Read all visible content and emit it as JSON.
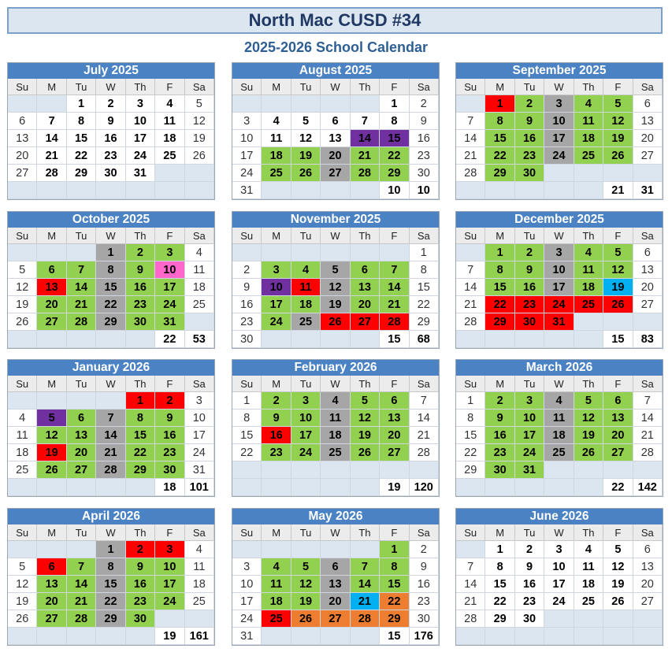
{
  "title": "North Mac CUSD #34",
  "subtitle": "2025-2026 School Calendar",
  "weekdays": [
    "Su",
    "M",
    "Tu",
    "W",
    "Th",
    "F",
    "Sa"
  ],
  "colors": {
    "student_day": "#92d050",
    "no_student": "#a6a6a6",
    "holiday": "#ff0000",
    "purple": "#7030a0",
    "pink": "#ff66cc",
    "blue": "#00b0f0",
    "orange": "#ed7d31",
    "empty": "#dce6f1"
  },
  "months": [
    {
      "name": "July 2025",
      "weeks": [
        [
          null,
          null,
          "1n",
          "2n",
          "3n",
          "4n",
          "5w"
        ],
        [
          "6w",
          "7n",
          "8n",
          "9n",
          "10n",
          "11n",
          "12w"
        ],
        [
          "13w",
          "14n",
          "15n",
          "16n",
          "17n",
          "18n",
          "19w"
        ],
        [
          "20w",
          "21n",
          "22n",
          "23n",
          "24n",
          "25n",
          "26w"
        ],
        [
          "27w",
          "28n",
          "29n",
          "30n",
          "31n",
          null,
          null
        ],
        [
          null,
          null,
          null,
          null,
          null,
          null,
          null
        ]
      ]
    },
    {
      "name": "August 2025",
      "weeks": [
        [
          null,
          null,
          null,
          null,
          null,
          "1n",
          "2w"
        ],
        [
          "3w",
          "4n",
          "5n",
          "6n",
          "7n",
          "8n",
          "9w"
        ],
        [
          "10w",
          "11n",
          "12n",
          "13n",
          "14p",
          "15p",
          "16w"
        ],
        [
          "17w",
          "18g",
          "19g",
          "20x",
          "21g",
          "22g",
          "23w"
        ],
        [
          "24w",
          "25g",
          "26g",
          "27x",
          "28g",
          "29g",
          "30w"
        ],
        [
          "31w",
          null,
          null,
          null,
          null,
          "10c",
          "10c"
        ]
      ]
    },
    {
      "name": "September 2025",
      "weeks": [
        [
          null,
          "1r",
          "2g",
          "3x",
          "4g",
          "5g",
          "6w"
        ],
        [
          "7w",
          "8g",
          "9g",
          "10x",
          "11g",
          "12g",
          "13w"
        ],
        [
          "14w",
          "15g",
          "16g",
          "17x",
          "18g",
          "19g",
          "20w"
        ],
        [
          "21w",
          "22g",
          "23g",
          "24x",
          "25g",
          "26g",
          "27w"
        ],
        [
          "28w",
          "29g",
          "30g",
          null,
          null,
          null,
          null
        ],
        [
          null,
          null,
          null,
          null,
          null,
          "21c",
          "31c"
        ]
      ]
    },
    {
      "name": "October 2025",
      "weeks": [
        [
          null,
          null,
          null,
          "1x",
          "2g",
          "3g",
          "4w"
        ],
        [
          "5w",
          "6g",
          "7g",
          "8x",
          "9g",
          "10k",
          "11w"
        ],
        [
          "12w",
          "13r",
          "14g",
          "15x",
          "16g",
          "17g",
          "18w"
        ],
        [
          "19w",
          "20g",
          "21g",
          "22x",
          "23g",
          "24g",
          "25w"
        ],
        [
          "26w",
          "27g",
          "28g",
          "29x",
          "30g",
          "31g",
          null
        ],
        [
          null,
          null,
          null,
          null,
          null,
          "22c",
          "53c"
        ]
      ]
    },
    {
      "name": "November 2025",
      "weeks": [
        [
          null,
          null,
          null,
          null,
          null,
          null,
          "1w"
        ],
        [
          "2w",
          "3g",
          "4g",
          "5x",
          "6g",
          "7g",
          "8w"
        ],
        [
          "9w",
          "10p",
          "11r",
          "12x",
          "13g",
          "14g",
          "15w"
        ],
        [
          "16w",
          "17g",
          "18g",
          "19x",
          "20g",
          "21g",
          "22w"
        ],
        [
          "23w",
          "24g",
          "25x",
          "26r",
          "27r",
          "28r",
          "29w"
        ],
        [
          "30w",
          null,
          null,
          null,
          null,
          "15c",
          "68c"
        ]
      ]
    },
    {
      "name": "December 2025",
      "weeks": [
        [
          null,
          "1g",
          "2g",
          "3x",
          "4g",
          "5g",
          "6w"
        ],
        [
          "7w",
          "8g",
          "9g",
          "10x",
          "11g",
          "12g",
          "13w"
        ],
        [
          "14w",
          "15g",
          "16g",
          "17x",
          "18g",
          "19b",
          "20w"
        ],
        [
          "21w",
          "22r",
          "23r",
          "24r",
          "25r",
          "26r",
          "27w"
        ],
        [
          "28w",
          "29r",
          "30r",
          "31r",
          null,
          null,
          null
        ],
        [
          null,
          null,
          null,
          null,
          null,
          "15c",
          "83c"
        ]
      ]
    },
    {
      "name": "January 2026",
      "weeks": [
        [
          null,
          null,
          null,
          null,
          "1r",
          "2r",
          "3w"
        ],
        [
          "4w",
          "5p",
          "6g",
          "7x",
          "8g",
          "9g",
          "10w"
        ],
        [
          "11w",
          "12g",
          "13g",
          "14x",
          "15g",
          "16g",
          "17w"
        ],
        [
          "18w",
          "19r",
          "20g",
          "21x",
          "22g",
          "23g",
          "24w"
        ],
        [
          "25w",
          "26g",
          "27g",
          "28x",
          "29g",
          "30g",
          "31w"
        ],
        [
          null,
          null,
          null,
          null,
          null,
          "18c",
          "101c"
        ]
      ]
    },
    {
      "name": "February 2026",
      "weeks": [
        [
          "1w",
          "2g",
          "3g",
          "4x",
          "5g",
          "6g",
          "7w"
        ],
        [
          "8w",
          "9g",
          "10g",
          "11x",
          "12g",
          "13g",
          "14w"
        ],
        [
          "15w",
          "16r",
          "17g",
          "18x",
          "19g",
          "20g",
          "21w"
        ],
        [
          "22w",
          "23g",
          "24g",
          "25x",
          "26g",
          "27g",
          "28w"
        ],
        [
          null,
          null,
          null,
          null,
          null,
          null,
          null
        ],
        [
          null,
          null,
          null,
          null,
          null,
          "19c",
          "120c"
        ]
      ]
    },
    {
      "name": "March 2026",
      "weeks": [
        [
          "1w",
          "2g",
          "3g",
          "4x",
          "5g",
          "6g",
          "7w"
        ],
        [
          "8w",
          "9g",
          "10g",
          "11x",
          "12g",
          "13g",
          "14w"
        ],
        [
          "15w",
          "16g",
          "17g",
          "18x",
          "19g",
          "20g",
          "21w"
        ],
        [
          "22w",
          "23g",
          "24g",
          "25x",
          "26g",
          "27g",
          "28w"
        ],
        [
          "29w",
          "30g",
          "31g",
          null,
          null,
          null,
          null
        ],
        [
          null,
          null,
          null,
          null,
          null,
          "22c",
          "142c"
        ]
      ]
    },
    {
      "name": "April 2026",
      "weeks": [
        [
          null,
          null,
          null,
          "1x",
          "2r",
          "3r",
          "4w"
        ],
        [
          "5w",
          "6r",
          "7g",
          "8x",
          "9g",
          "10g",
          "11w"
        ],
        [
          "12w",
          "13g",
          "14g",
          "15x",
          "16g",
          "17g",
          "18w"
        ],
        [
          "19w",
          "20g",
          "21g",
          "22x",
          "23g",
          "24g",
          "25w"
        ],
        [
          "26w",
          "27g",
          "28g",
          "29x",
          "30g",
          null,
          null
        ],
        [
          null,
          null,
          null,
          null,
          null,
          "19c",
          "161c"
        ]
      ]
    },
    {
      "name": "May 2026",
      "weeks": [
        [
          null,
          null,
          null,
          null,
          null,
          "1g",
          "2w"
        ],
        [
          "3w",
          "4g",
          "5g",
          "6x",
          "7g",
          "8g",
          "9w"
        ],
        [
          "10w",
          "11g",
          "12g",
          "13x",
          "14g",
          "15g",
          "16w"
        ],
        [
          "17w",
          "18g",
          "19g",
          "20x",
          "21b",
          "22o",
          "23w"
        ],
        [
          "24w",
          "25r",
          "26o",
          "27o",
          "28o",
          "29o",
          "30w"
        ],
        [
          "31w",
          null,
          null,
          null,
          null,
          "15c",
          "176c"
        ]
      ]
    },
    {
      "name": "June 2026",
      "weeks": [
        [
          null,
          "1n",
          "2n",
          "3n",
          "4n",
          "5n",
          "6w"
        ],
        [
          "7w",
          "8n",
          "9n",
          "10n",
          "11n",
          "12n",
          "13w"
        ],
        [
          "14w",
          "15n",
          "16n",
          "17n",
          "18n",
          "19n",
          "20w"
        ],
        [
          "21w",
          "22n",
          "23n",
          "24n",
          "25n",
          "26n",
          "27w"
        ],
        [
          "28w",
          "29n",
          "30n",
          null,
          null,
          null,
          null
        ],
        [
          null,
          null,
          null,
          null,
          null,
          null,
          null
        ]
      ]
    }
  ]
}
